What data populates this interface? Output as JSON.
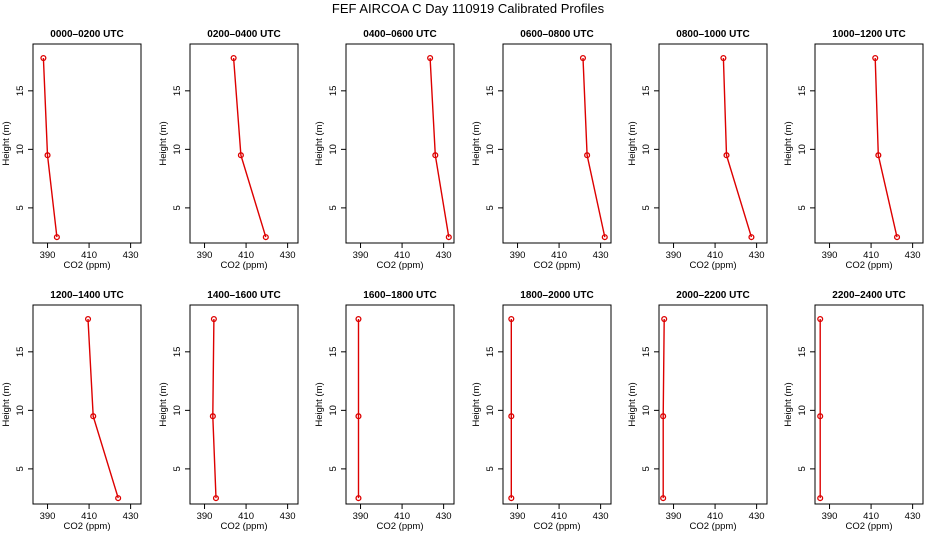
{
  "title": "FEF AIRCOA C  Day 110919  Calibrated Profiles",
  "colors": {
    "series": "#dd0000",
    "axis": "#000000"
  },
  "chart_data": {
    "type": "line",
    "xlabel": "CO2 (ppm)",
    "ylabel": "Height (m)",
    "xlim": [
      383,
      435
    ],
    "ylim": [
      2,
      19
    ],
    "xticks": [
      390,
      410,
      430
    ],
    "yticks": [
      5,
      10,
      15
    ],
    "heights": [
      2.5,
      9.5,
      17.8
    ],
    "panels": [
      {
        "title": "0000–0200 UTC",
        "values": [
          394.5,
          390.0,
          388.0
        ]
      },
      {
        "title": "0200–0400 UTC",
        "values": [
          419.5,
          407.5,
          404.0
        ]
      },
      {
        "title": "0400–0600 UTC",
        "values": [
          432.5,
          426.0,
          423.5
        ]
      },
      {
        "title": "0600–0800 UTC",
        "values": [
          432.0,
          423.5,
          421.5
        ]
      },
      {
        "title": "0800–1000 UTC",
        "values": [
          427.5,
          415.5,
          414.0
        ]
      },
      {
        "title": "1000–1200 UTC",
        "values": [
          422.5,
          413.5,
          412.0
        ]
      },
      {
        "title": "1200–1400 UTC",
        "values": [
          424.0,
          412.0,
          409.5
        ]
      },
      {
        "title": "1400–1600 UTC",
        "values": [
          395.5,
          394.0,
          394.5
        ]
      },
      {
        "title": "1600–1800 UTC",
        "values": [
          389.0,
          389.0,
          389.0
        ]
      },
      {
        "title": "1800–2000 UTC",
        "values": [
          387.0,
          387.0,
          387.0
        ]
      },
      {
        "title": "2000–2200 UTC",
        "values": [
          385.0,
          385.0,
          385.5
        ]
      },
      {
        "title": "2200–2400 UTC",
        "values": [
          385.5,
          385.5,
          385.5
        ]
      }
    ]
  }
}
